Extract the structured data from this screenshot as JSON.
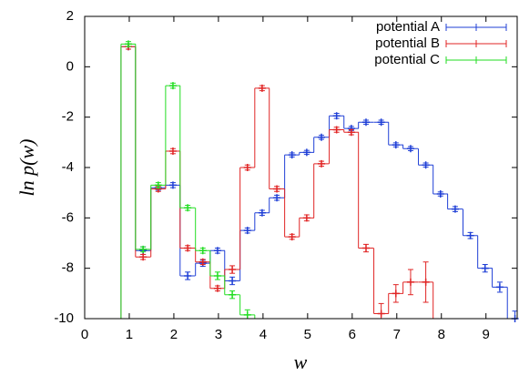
{
  "chart_data": {
    "type": "step",
    "xlabel": "w",
    "ylabel": "ln p(w)",
    "xlim": [
      0,
      9.7
    ],
    "ylim": [
      -10,
      2
    ],
    "xticks": [
      0,
      1,
      2,
      3,
      4,
      5,
      6,
      7,
      8,
      9
    ],
    "yticks": [
      -10,
      -8,
      -6,
      -4,
      -2,
      0,
      2
    ],
    "legend": "top-right",
    "x": [
      0.98,
      1.31,
      1.65,
      1.98,
      2.31,
      2.65,
      2.98,
      3.31,
      3.65,
      3.98,
      4.31,
      4.65,
      4.98,
      5.31,
      5.65,
      5.98,
      6.31,
      6.65,
      6.98,
      7.31,
      7.65,
      7.98,
      8.31,
      8.65,
      8.98,
      9.31,
      9.65
    ],
    "series": [
      {
        "name": "potential A",
        "color": "#1f3fd6",
        "values": [
          0.8,
          -7.3,
          -4.8,
          -4.7,
          -8.3,
          -7.8,
          -7.3,
          -8.5,
          -6.5,
          -5.8,
          -5.2,
          -3.5,
          -3.4,
          -2.8,
          -1.95,
          -2.45,
          -2.2,
          -2.2,
          -3.1,
          -3.25,
          -3.9,
          -5.05,
          -5.65,
          -6.7,
          -8.0,
          -8.75,
          -10
        ],
        "errors": [
          0.1,
          0.15,
          0.1,
          0.1,
          0.15,
          0.12,
          0.1,
          0.15,
          0.1,
          0.1,
          0.1,
          0.08,
          0.08,
          0.08,
          0.1,
          0.08,
          0.08,
          0.08,
          0.08,
          0.08,
          0.08,
          0.08,
          0.1,
          0.12,
          0.15,
          0.2,
          0.3
        ]
      },
      {
        "name": "potential B",
        "color": "#e02424",
        "values": [
          0.8,
          -7.55,
          -4.85,
          -3.35,
          -7.2,
          -7.75,
          -8.8,
          -8.05,
          -4.0,
          -0.85,
          -4.85,
          -6.75,
          -6.0,
          -3.85,
          -2.5,
          -2.6,
          -7.2,
          -9.8,
          -9.0,
          -8.55,
          -8.55,
          null,
          null,
          null,
          null,
          null,
          null
        ],
        "errors": [
          0.1,
          0.1,
          0.1,
          0.1,
          0.1,
          0.1,
          0.1,
          0.15,
          0.1,
          0.1,
          0.1,
          0.1,
          0.12,
          0.1,
          0.1,
          0.1,
          0.15,
          0.4,
          0.35,
          0.5,
          0.8,
          null,
          null,
          null,
          null,
          null,
          null
        ]
      },
      {
        "name": "potential C",
        "color": "#22dd22",
        "values": [
          0.9,
          -7.25,
          -4.7,
          -0.75,
          -5.6,
          -7.3,
          -8.3,
          -9.05,
          -9.85,
          null,
          null,
          null,
          null,
          null,
          null,
          null,
          null,
          null,
          null,
          null,
          null,
          null,
          null,
          null,
          null,
          null,
          null
        ],
        "errors": [
          0.1,
          0.1,
          0.1,
          0.1,
          0.1,
          0.1,
          0.15,
          0.15,
          0.2,
          null,
          null,
          null,
          null,
          null,
          null,
          null,
          null,
          null,
          null,
          null,
          null,
          null,
          null,
          null,
          null,
          null,
          null
        ]
      }
    ]
  }
}
